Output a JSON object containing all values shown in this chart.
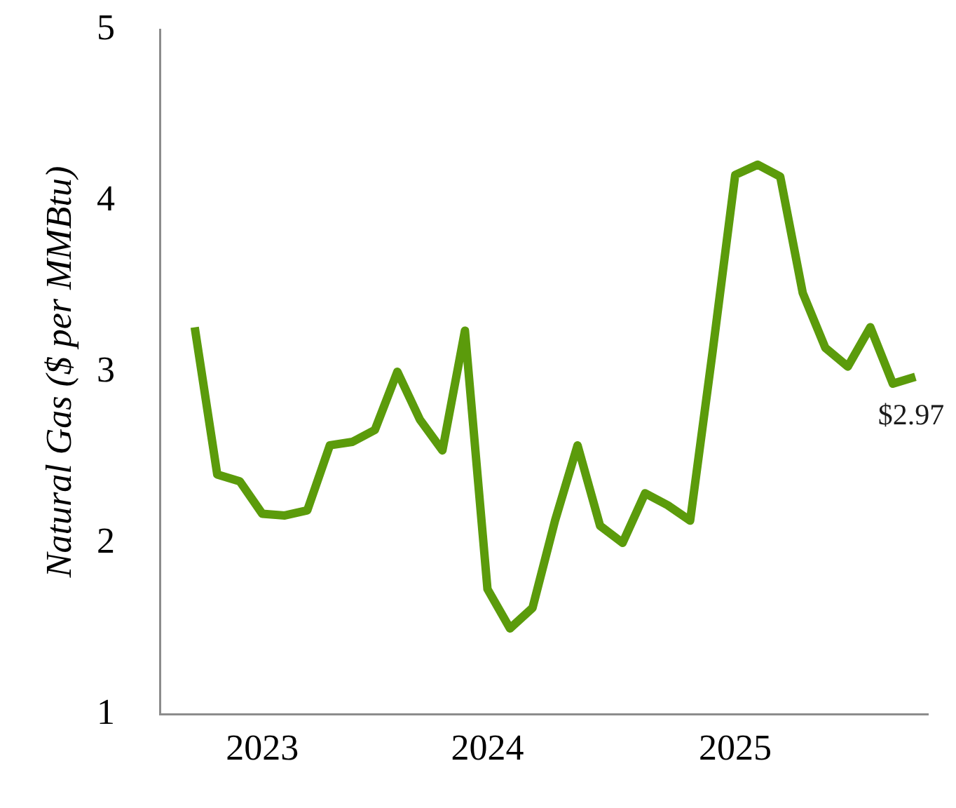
{
  "chart_data": {
    "type": "line",
    "ylabel": "Natural Gas ($ per MMBtu)",
    "categories": [
      null,
      null,
      null,
      "2023",
      null,
      null,
      null,
      null,
      null,
      null,
      null,
      null,
      null,
      "2024",
      null,
      null,
      null,
      null,
      null,
      null,
      null,
      null,
      null,
      null,
      "2025",
      null,
      null,
      null,
      null,
      null,
      null,
      null,
      null
    ],
    "series": [
      {
        "color": "#5b9b0b",
        "values": [
          3.26,
          2.4,
          2.36,
          2.17,
          2.16,
          2.19,
          2.57,
          2.59,
          2.66,
          3.0,
          2.72,
          2.54,
          3.24,
          1.73,
          1.5,
          1.62,
          2.13,
          2.57,
          2.1,
          2.0,
          2.29,
          2.22,
          2.13,
          3.12,
          4.15,
          4.21,
          4.14,
          3.46,
          3.14,
          3.03,
          3.26,
          2.93,
          2.97
        ],
        "value_labels": [
          null,
          null,
          null,
          null,
          null,
          null,
          null,
          null,
          null,
          null,
          null,
          null,
          null,
          null,
          null,
          null,
          null,
          null,
          null,
          null,
          null,
          null,
          null,
          null,
          null,
          null,
          null,
          null,
          null,
          null,
          null,
          null,
          "$2.97"
        ]
      }
    ],
    "ylim": [
      1,
      5
    ],
    "yticks": [
      1,
      2,
      3,
      4,
      5
    ],
    "grid": false,
    "legend": false,
    "marker": "none",
    "line_style": "solid"
  }
}
